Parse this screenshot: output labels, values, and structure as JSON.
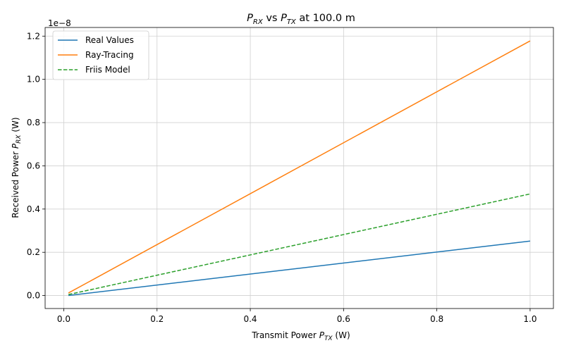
{
  "chart_data": {
    "type": "line",
    "title": "P_RX vs P_TX at 100.0 m",
    "title_parts": {
      "p": "P",
      "rx_sub": "RX",
      "vs": "vs",
      "tx_sub": "TX",
      "rest": "at 100.0 m"
    },
    "xlabel_parts": {
      "pre": "Transmit Power ",
      "p": "P",
      "sub": "TX",
      "post": " (W)"
    },
    "ylabel_parts": {
      "pre": "Received Power ",
      "p": "P",
      "sub": "RX",
      "post": " (W)"
    },
    "y_multiplier": "1e−8",
    "xlim": [
      -0.04,
      1.05
    ],
    "ylim": [
      -6e-10,
      1.24e-08
    ],
    "x_ticks": [
      0.0,
      0.2,
      0.4,
      0.6,
      0.8,
      1.0
    ],
    "x_tick_labels": [
      "0.0",
      "0.2",
      "0.4",
      "0.6",
      "0.8",
      "1.0"
    ],
    "y_ticks": [
      0,
      2e-09,
      4e-09,
      6e-09,
      8e-09,
      1e-08,
      1.2e-08
    ],
    "y_tick_labels": [
      "0.0",
      "0.2",
      "0.4",
      "0.6",
      "0.8",
      "1.0",
      "1.2"
    ],
    "grid": true,
    "legend_position": "top-left",
    "series": [
      {
        "name": "Real Values",
        "color": "#1f77b4",
        "style": "solid",
        "x": [
          0.01,
          1.0
        ],
        "values": [
          2.5e-12,
          2.52e-09
        ]
      },
      {
        "name": "Ray-Tracing",
        "color": "#ff7f0e",
        "style": "solid",
        "x": [
          0.01,
          1.0
        ],
        "values": [
          1.18e-10,
          1.178e-08
        ]
      },
      {
        "name": "Friis Model",
        "color": "#2ca02c",
        "style": "dashed",
        "x": [
          0.01,
          1.0
        ],
        "values": [
          4.7e-11,
          4.7e-09
        ]
      }
    ]
  }
}
